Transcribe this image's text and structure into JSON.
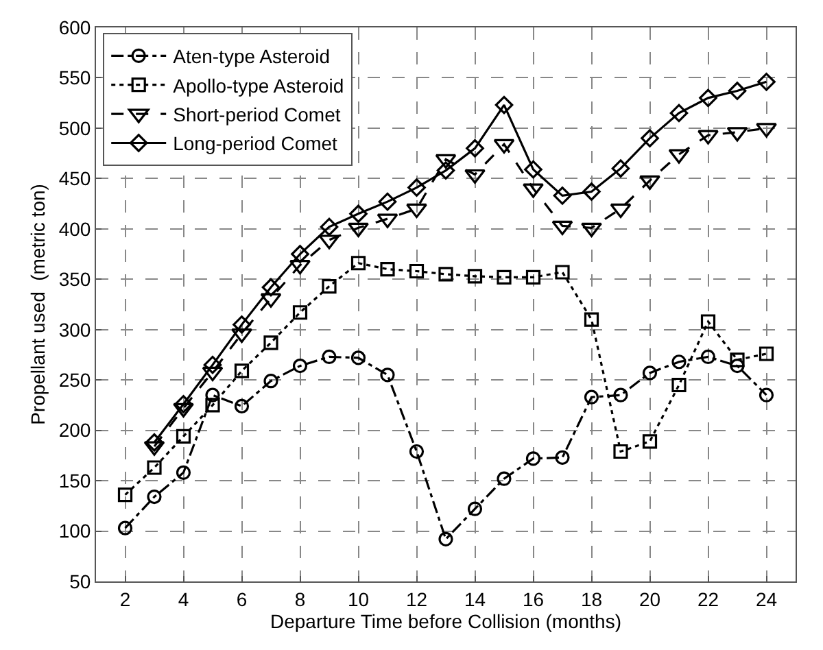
{
  "chart_data": {
    "type": "line",
    "xlabel": "Departure Time before Collision (months)",
    "ylabel": "Propellant used  (metric ton)",
    "xlim": [
      1,
      25
    ],
    "xticks": [
      2,
      4,
      6,
      8,
      10,
      12,
      14,
      16,
      18,
      20,
      22,
      24
    ],
    "ylim": [
      50,
      600
    ],
    "yticks": [
      50,
      100,
      150,
      200,
      250,
      300,
      350,
      400,
      450,
      500,
      550,
      600
    ],
    "grid": true,
    "legend": "top left",
    "series": [
      {
        "name": "Aten-type Asteroid",
        "color": "#000000",
        "marker": "circle",
        "line_style": "dashdot",
        "x": [
          2,
          3,
          4,
          5,
          6,
          7,
          8,
          9,
          10,
          11,
          12,
          13,
          14,
          15,
          16,
          17,
          18,
          19,
          20,
          21,
          22,
          23,
          24
        ],
        "values": [
          103,
          134,
          158,
          235,
          224,
          249,
          264,
          273,
          272,
          255,
          179,
          92,
          122,
          152,
          172,
          173,
          233,
          235,
          257,
          268,
          273,
          264,
          235
        ]
      },
      {
        "name": "Apollo-type Asteroid",
        "color": "#000000",
        "marker": "square",
        "line_style": "dotted",
        "x": [
          2,
          3,
          4,
          5,
          6,
          7,
          8,
          9,
          10,
          11,
          12,
          13,
          14,
          15,
          16,
          17,
          18,
          19,
          20,
          21,
          22,
          23,
          24
        ],
        "values": [
          136,
          163,
          194,
          225,
          259,
          287,
          317,
          343,
          366,
          360,
          358,
          355,
          353,
          352,
          352,
          357,
          310,
          179,
          189,
          245,
          308,
          270,
          276
        ]
      },
      {
        "name": "Short-period Comet",
        "color": "#000000",
        "marker": "triangle",
        "line_style": "dashed",
        "x": [
          3,
          4,
          5,
          6,
          7,
          8,
          9,
          10,
          11,
          12,
          13,
          14,
          15,
          16,
          17,
          18,
          19,
          20,
          21,
          22,
          23,
          24
        ],
        "values": [
          184,
          222,
          258,
          296,
          331,
          364,
          389,
          401,
          410,
          420,
          469,
          454,
          484,
          440,
          403,
          401,
          420,
          448,
          474,
          493,
          496,
          500
        ]
      },
      {
        "name": "Long-period Comet",
        "color": "#000000",
        "marker": "diamond",
        "line_style": "solid",
        "x": [
          3,
          4,
          5,
          6,
          7,
          8,
          9,
          10,
          11,
          12,
          13,
          14,
          15,
          16,
          17,
          18,
          19,
          20,
          21,
          22,
          23,
          24
        ],
        "values": [
          188,
          226,
          265,
          305,
          342,
          375,
          402,
          415,
          427,
          441,
          458,
          480,
          523,
          459,
          433,
          437,
          460,
          490,
          515,
          530,
          537,
          546
        ]
      }
    ]
  }
}
